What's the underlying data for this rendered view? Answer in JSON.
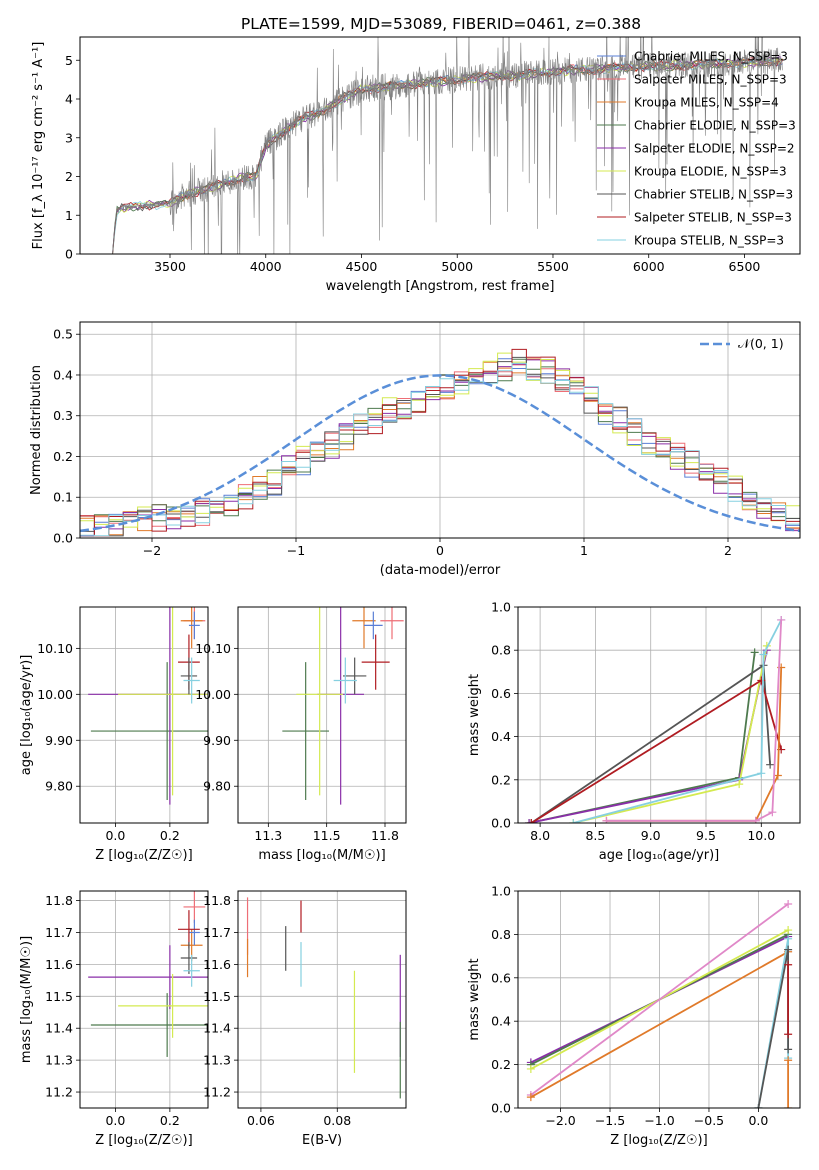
{
  "suptitle": "PLATE=1599, MJD=53089, FIBERID=0461, z=0.388",
  "colors": {
    "chabrier_miles": "#5a7fd6",
    "salpeter_miles": "#ee6e76",
    "kroupa_miles": "#e07a2a",
    "chabrier_elodie": "#4e7a4e",
    "salpeter_elodie": "#8a2ea8",
    "kroupa_elodie": "#d4ea50",
    "chabrier_stelib": "#555555",
    "salpeter_stelib": "#b01c22",
    "kroupa_stelib": "#86d0e0",
    "gaussian": "#5a8fd8",
    "pink": "#e088c8"
  },
  "chart_data": [
    {
      "id": "spectrum",
      "type": "line",
      "xlabel": "wavelength [Angstrom, rest frame]",
      "ylabel": "Flux [f_λ 10⁻¹⁷ erg cm⁻² s⁻¹ A⁻¹]",
      "xlim": [
        3030,
        6790
      ],
      "ylim": [
        0,
        5.6
      ],
      "xticks": [
        3500,
        4000,
        4500,
        5000,
        5500,
        6000,
        6500
      ],
      "yticks": [
        0,
        1,
        2,
        3,
        4,
        5
      ],
      "grid": false,
      "legend_position": "top-right",
      "continuum": {
        "x": [
          3200,
          3220,
          3250,
          3300,
          3400,
          3500,
          3600,
          3700,
          3800,
          3900,
          3950,
          4000,
          4100,
          4200,
          4300,
          4400,
          4500,
          4600,
          4700,
          4800,
          4900,
          5000,
          5100,
          5200,
          5300,
          5400,
          5500,
          5600,
          5700,
          5800,
          5900,
          6000,
          6100,
          6200,
          6300,
          6400,
          6500,
          6600,
          6700
        ],
        "y": [
          0,
          1.1,
          1.2,
          1.22,
          1.25,
          1.32,
          1.55,
          1.7,
          1.85,
          2.0,
          2.0,
          2.8,
          3.2,
          3.5,
          3.7,
          4.0,
          4.25,
          4.3,
          4.35,
          4.4,
          4.45,
          4.5,
          4.55,
          4.6,
          4.6,
          4.65,
          4.7,
          4.75,
          4.75,
          4.8,
          4.82,
          4.85,
          4.85,
          4.88,
          4.9,
          4.92,
          4.95,
          4.95,
          5.0
        ]
      },
      "series": [
        {
          "name": "Chabrier MILES, N_SSP=3",
          "color_key": "chabrier_miles"
        },
        {
          "name": "Salpeter MILES, N_SSP=3",
          "color_key": "salpeter_miles"
        },
        {
          "name": "Kroupa MILES, N_SSP=4",
          "color_key": "kroupa_miles"
        },
        {
          "name": "Chabrier ELODIE, N_SSP=3",
          "color_key": "chabrier_elodie"
        },
        {
          "name": "Salpeter ELODIE, N_SSP=2",
          "color_key": "salpeter_elodie"
        },
        {
          "name": "Kroupa ELODIE, N_SSP=3",
          "color_key": "kroupa_elodie"
        },
        {
          "name": "Chabrier STELIB, N_SSP=3",
          "color_key": "chabrier_stelib"
        },
        {
          "name": "Salpeter STELIB, N_SSP=3",
          "color_key": "salpeter_stelib"
        },
        {
          "name": "Kroupa STELIB, N_SSP=3",
          "color_key": "kroupa_stelib"
        }
      ]
    },
    {
      "id": "residuals",
      "type": "line",
      "xlabel": "(data-model)/error",
      "ylabel": "Normed distribution",
      "xlim": [
        -2.5,
        2.5
      ],
      "ylim": [
        0,
        0.53
      ],
      "xticks": [
        -2,
        -1,
        0,
        1,
        2
      ],
      "yticks": [
        0.0,
        0.1,
        0.2,
        0.3,
        0.4,
        0.5
      ],
      "grid": true,
      "legend": {
        "label": "𝒩(0, 1)",
        "position": "top-right"
      },
      "bins": {
        "start": -2.5,
        "width": 0.1,
        "count": 50
      },
      "hist_base": [
        0.02,
        0.025,
        0.03,
        0.04,
        0.045,
        0.05,
        0.055,
        0.06,
        0.065,
        0.07,
        0.08,
        0.1,
        0.12,
        0.14,
        0.17,
        0.19,
        0.21,
        0.23,
        0.25,
        0.27,
        0.29,
        0.31,
        0.32,
        0.33,
        0.35,
        0.37,
        0.38,
        0.4,
        0.41,
        0.42,
        0.43,
        0.42,
        0.41,
        0.38,
        0.36,
        0.34,
        0.31,
        0.29,
        0.26,
        0.24,
        0.22,
        0.2,
        0.18,
        0.16,
        0.14,
        0.12,
        0.09,
        0.07,
        0.055,
        0.045
      ],
      "gaussian_mean": 0,
      "gaussian_sigma": 1
    },
    {
      "id": "z_age",
      "type": "scatter",
      "xlabel": "Z [log₁₀(Z/Z☉)]",
      "ylabel": "age  [log₁₀(age/yr)]",
      "xlim": [
        -0.13,
        0.34
      ],
      "ylim": [
        9.72,
        10.19
      ],
      "xticks": [
        0.0,
        0.2
      ],
      "yticks": [
        9.8,
        9.9,
        10.0,
        10.1
      ],
      "grid": true,
      "points": [
        {
          "color_key": "chabrier_elodie",
          "x": 0.19,
          "xerr": 0.28,
          "y": 9.92,
          "yerr": 0.15
        },
        {
          "color_key": "salpeter_elodie",
          "x": 0.2,
          "xerr": 0.3,
          "y": 10.0,
          "yerr": 0.24
        },
        {
          "color_key": "kroupa_elodie",
          "x": 0.21,
          "xerr": 0.2,
          "y": 10.0,
          "yerr": 0.22
        },
        {
          "color_key": "salpeter_miles",
          "x": 0.29,
          "xerr": 0.04,
          "y": 10.16,
          "yerr": 0.04
        },
        {
          "color_key": "kroupa_miles",
          "x": 0.28,
          "xerr": 0.04,
          "y": 10.16,
          "yerr": 0.06
        },
        {
          "color_key": "chabrier_miles",
          "x": 0.29,
          "xerr": 0.02,
          "y": 10.15,
          "yerr": 0.03
        },
        {
          "color_key": "salpeter_stelib",
          "x": 0.27,
          "xerr": 0.04,
          "y": 10.07,
          "yerr": 0.06
        },
        {
          "color_key": "chabrier_stelib",
          "x": 0.27,
          "xerr": 0.03,
          "y": 10.04,
          "yerr": 0.04
        },
        {
          "color_key": "kroupa_stelib",
          "x": 0.28,
          "xerr": 0.03,
          "y": 10.03,
          "yerr": 0.05
        }
      ]
    },
    {
      "id": "mass_age",
      "type": "scatter",
      "xlabel": "mass [log₁₀(M/M☉)]",
      "ylabel": "",
      "xlim": [
        11.12,
        11.84
      ],
      "ylim": [
        9.72,
        10.19
      ],
      "xticks": [
        11.25,
        11.5,
        11.75
      ],
      "yticks": [
        9.8,
        9.9,
        10.0,
        10.1
      ],
      "grid": true,
      "points": [
        {
          "color_key": "chabrier_elodie",
          "x": 11.41,
          "xerr": 0.1,
          "y": 9.92,
          "yerr": 0.15
        },
        {
          "color_key": "salpeter_elodie",
          "x": 11.56,
          "xerr": 0.1,
          "y": 10.0,
          "yerr": 0.24
        },
        {
          "color_key": "kroupa_elodie",
          "x": 11.47,
          "xerr": 0.1,
          "y": 10.0,
          "yerr": 0.22
        },
        {
          "color_key": "salpeter_miles",
          "x": 11.78,
          "xerr": 0.05,
          "y": 10.16,
          "yerr": 0.04
        },
        {
          "color_key": "kroupa_miles",
          "x": 11.66,
          "xerr": 0.05,
          "y": 10.16,
          "yerr": 0.06
        },
        {
          "color_key": "chabrier_miles",
          "x": 11.7,
          "xerr": 0.04,
          "y": 10.15,
          "yerr": 0.03
        },
        {
          "color_key": "salpeter_stelib",
          "x": 11.71,
          "xerr": 0.06,
          "y": 10.07,
          "yerr": 0.06
        },
        {
          "color_key": "chabrier_stelib",
          "x": 11.62,
          "xerr": 0.05,
          "y": 10.04,
          "yerr": 0.04
        },
        {
          "color_key": "kroupa_stelib",
          "x": 11.58,
          "xerr": 0.05,
          "y": 10.03,
          "yerr": 0.05
        }
      ]
    },
    {
      "id": "age_weight",
      "type": "line",
      "xlabel": "age  [log₁₀(age/yr)]",
      "ylabel": "mass weight",
      "xlim": [
        7.8,
        10.35
      ],
      "ylim": [
        0.0,
        1.0
      ],
      "xticks": [
        8.0,
        8.5,
        9.0,
        9.5,
        10.0
      ],
      "yticks": [
        0.0,
        0.2,
        0.4,
        0.6,
        0.8,
        1.0
      ],
      "grid": true,
      "series": [
        {
          "color_key": "chabrier_elodie",
          "x": [
            7.9,
            9.8,
            9.94
          ],
          "y": [
            0.0,
            0.21,
            0.79
          ]
        },
        {
          "color_key": "salpeter_elodie",
          "x": [
            7.9,
            9.8,
            10.05
          ],
          "y": [
            0.0,
            0.2,
            0.8
          ]
        },
        {
          "color_key": "kroupa_elodie",
          "x": [
            8.3,
            9.8,
            10.05
          ],
          "y": [
            0.0,
            0.18,
            0.82
          ]
        },
        {
          "color_key": "chabrier_stelib",
          "x": [
            7.92,
            10.02,
            10.08
          ],
          "y": [
            0.0,
            0.73,
            0.27
          ]
        },
        {
          "color_key": "salpeter_stelib",
          "x": [
            7.92,
            10.0,
            10.18
          ],
          "y": [
            0.0,
            0.66,
            0.34
          ]
        },
        {
          "color_key": "kroupa_stelib",
          "x": [
            8.3,
            10.0,
            10.02,
            10.18
          ],
          "y": [
            0.0,
            0.23,
            0.78,
            0.94
          ]
        },
        {
          "color_key": "kroupa_miles",
          "x": [
            8.6,
            9.95,
            10.15,
            10.18
          ],
          "y": [
            0.01,
            0.01,
            0.22,
            0.72
          ]
        },
        {
          "color_key": "pink",
          "x": [
            8.6,
            9.95,
            10.1,
            10.18
          ],
          "y": [
            0.01,
            0.01,
            0.05,
            0.94
          ]
        }
      ]
    },
    {
      "id": "z_mass",
      "type": "scatter",
      "xlabel": "Z [log₁₀(Z/Z☉)]",
      "ylabel": "mass [log₁₀(M/M☉)]",
      "xlim": [
        -0.13,
        0.34
      ],
      "ylim": [
        11.15,
        11.83
      ],
      "xticks": [
        0.0,
        0.2
      ],
      "yticks": [
        11.2,
        11.3,
        11.4,
        11.5,
        11.6,
        11.7,
        11.8
      ],
      "grid": true,
      "points": [
        {
          "color_key": "chabrier_elodie",
          "x": 0.19,
          "xerr": 0.28,
          "y": 11.41,
          "yerr": 0.1
        },
        {
          "color_key": "salpeter_elodie",
          "x": 0.2,
          "xerr": 0.3,
          "y": 11.56,
          "yerr": 0.1
        },
        {
          "color_key": "kroupa_elodie",
          "x": 0.21,
          "xerr": 0.2,
          "y": 11.47,
          "yerr": 0.1
        },
        {
          "color_key": "salpeter_miles",
          "x": 0.29,
          "xerr": 0.04,
          "y": 11.78,
          "yerr": 0.05
        },
        {
          "color_key": "kroupa_miles",
          "x": 0.28,
          "xerr": 0.04,
          "y": 11.66,
          "yerr": 0.05
        },
        {
          "color_key": "chabrier_miles",
          "x": 0.29,
          "xerr": 0.02,
          "y": 11.7,
          "yerr": 0.04
        },
        {
          "color_key": "salpeter_stelib",
          "x": 0.27,
          "xerr": 0.04,
          "y": 11.71,
          "yerr": 0.06
        },
        {
          "color_key": "chabrier_stelib",
          "x": 0.27,
          "xerr": 0.03,
          "y": 11.62,
          "yerr": 0.05
        },
        {
          "color_key": "kroupa_stelib",
          "x": 0.28,
          "xerr": 0.03,
          "y": 11.58,
          "yerr": 0.05
        }
      ]
    },
    {
      "id": "ebv_mass",
      "type": "scatter",
      "xlabel": "E(B-V)",
      "ylabel": "",
      "xlim": [
        0.054,
        0.098
      ],
      "ylim": [
        11.15,
        11.83
      ],
      "xticks": [
        0.06,
        0.08
      ],
      "yticks": [
        11.2,
        11.3,
        11.4,
        11.5,
        11.6,
        11.7,
        11.8
      ],
      "grid": true,
      "points": [
        {
          "color_key": "salpeter_miles",
          "x": 0.0565,
          "y": 11.72,
          "yerr": 0.09
        },
        {
          "color_key": "kroupa_miles",
          "x": 0.0565,
          "y": 11.62,
          "yerr": 0.06
        },
        {
          "color_key": "chabrier_stelib",
          "x": 0.0665,
          "y": 11.65,
          "yerr": 0.07
        },
        {
          "color_key": "salpeter_stelib",
          "x": 0.0705,
          "y": 11.75,
          "yerr": 0.05
        },
        {
          "color_key": "kroupa_stelib",
          "x": 0.0705,
          "y": 11.6,
          "yerr": 0.07
        },
        {
          "color_key": "kroupa_elodie",
          "x": 0.0845,
          "y": 11.42,
          "yerr": 0.16
        },
        {
          "color_key": "salpeter_elodie",
          "x": 0.0965,
          "y": 11.47,
          "yerr": 0.16
        },
        {
          "color_key": "chabrier_elodie",
          "x": 0.0965,
          "y": 11.3,
          "yerr": 0.12
        }
      ]
    },
    {
      "id": "z_weight",
      "type": "line",
      "xlabel": "Z [log₁₀(Z/Z☉)]",
      "ylabel": "mass weight",
      "xlim": [
        -2.43,
        0.42
      ],
      "ylim": [
        0.0,
        1.0
      ],
      "xticks": [
        -2.0,
        -1.5,
        -1.0,
        -0.5,
        0.0
      ],
      "yticks": [
        0.0,
        0.2,
        0.4,
        0.6,
        0.8,
        1.0
      ],
      "grid": true,
      "series": [
        {
          "color_key": "salpeter_elodie",
          "x": [
            -2.3,
            0.3
          ],
          "y": [
            0.21,
            0.79
          ]
        },
        {
          "color_key": "chabrier_elodie",
          "x": [
            -2.3,
            0.3
          ],
          "y": [
            0.2,
            0.8
          ]
        },
        {
          "color_key": "kroupa_elodie",
          "x": [
            -2.3,
            0.3
          ],
          "y": [
            0.18,
            0.82
          ]
        },
        {
          "color_key": "pink",
          "x": [
            -2.3,
            0.3
          ],
          "y": [
            0.06,
            0.94
          ]
        },
        {
          "color_key": "kroupa_miles",
          "x": [
            -2.3,
            0.3
          ],
          "y": [
            0.05,
            0.72
          ]
        },
        {
          "color_key": "kroupa_stelib",
          "x": [
            0.0,
            0.3,
            0.3
          ],
          "y": [
            0.0,
            0.78,
            0.23
          ]
        },
        {
          "color_key": "chabrier_stelib",
          "x": [
            0.0,
            0.3,
            0.3
          ],
          "y": [
            0.0,
            0.73,
            0.27
          ]
        },
        {
          "color_key": "salpeter_stelib",
          "x": [
            0.3,
            0.3
          ],
          "y": [
            0.34,
            0.66
          ]
        },
        {
          "color_key": "kroupa_miles",
          "x": [
            0.3,
            0.3
          ],
          "y": [
            0.0,
            0.22
          ]
        }
      ]
    }
  ]
}
